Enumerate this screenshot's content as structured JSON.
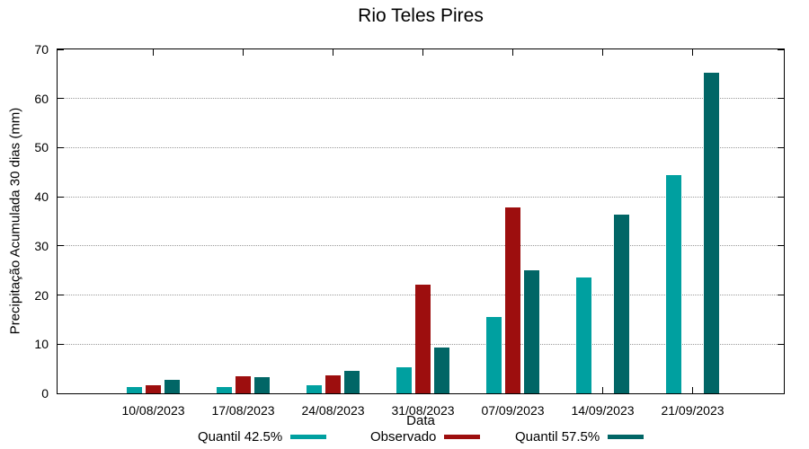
{
  "title": "Rio Teles Pires",
  "chart_data": {
    "type": "bar",
    "title": "Rio Teles Pires",
    "xlabel": "Data",
    "ylabel": "Precipitação Acumulada 30 dias (mm)",
    "categories": [
      "10/08/2023",
      "17/08/2023",
      "24/08/2023",
      "31/08/2023",
      "07/09/2023",
      "14/09/2023",
      "21/09/2023"
    ],
    "series": [
      {
        "name": "Quantil 42.5%",
        "color": "#00a0a0",
        "values": [
          1.2,
          1.3,
          1.7,
          5.3,
          15.6,
          23.5,
          44.4
        ]
      },
      {
        "name": "Observado",
        "color": "#9d0e0e",
        "values": [
          1.6,
          3.5,
          3.7,
          22.2,
          37.9,
          null,
          null
        ]
      },
      {
        "name": "Quantil 57.5%",
        "color": "#016666",
        "values": [
          2.7,
          3.3,
          4.5,
          9.3,
          25.0,
          36.3,
          65.3
        ]
      }
    ],
    "ylim": [
      0,
      70
    ],
    "ytick_step": 10,
    "grid": "horizontal-dotted",
    "legend_position": "bottom",
    "text_color": "#000000",
    "grid_color": "#9a9a9a"
  }
}
